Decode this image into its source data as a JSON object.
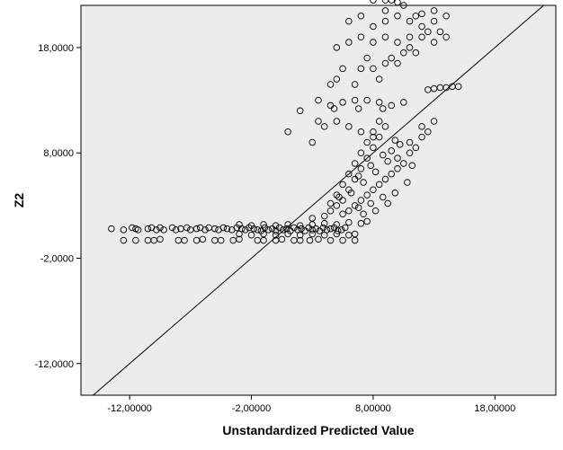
{
  "chart_data": {
    "type": "scatter",
    "title": "",
    "xlabel": "Unstandardized Predicted Value",
    "ylabel": "Z2",
    "xlim": [
      -16,
      23
    ],
    "ylim": [
      -15,
      22
    ],
    "x_ticks": [
      -12,
      -2,
      8,
      18
    ],
    "y_ticks": [
      -12,
      -2,
      8,
      18
    ],
    "x_tick_labels": [
      "-12,00000",
      "-2,00000",
      "8,00000",
      "18,00000"
    ],
    "y_tick_labels": [
      "-12,0000",
      "-2,0000",
      "8,0000",
      "18,0000"
    ],
    "reference_line": "y = x",
    "plot_background": "#ececec",
    "marker": "open-circle",
    "grid": false,
    "points": [
      [
        -13.5,
        0.8
      ],
      [
        -12.5,
        0.7
      ],
      [
        -11.8,
        0.9
      ],
      [
        -11.5,
        0.8
      ],
      [
        -11.3,
        0.7
      ],
      [
        -10.5,
        0.8
      ],
      [
        -10.2,
        0.9
      ],
      [
        -9.8,
        0.7
      ],
      [
        -9.5,
        0.9
      ],
      [
        -9.2,
        0.7
      ],
      [
        -8.5,
        0.9
      ],
      [
        -8.2,
        0.7
      ],
      [
        -7.8,
        0.8
      ],
      [
        -7.3,
        0.9
      ],
      [
        -7,
        0.7
      ],
      [
        -6.5,
        0.8
      ],
      [
        -6.2,
        0.9
      ],
      [
        -5.8,
        0.7
      ],
      [
        -5.5,
        0.9
      ],
      [
        -5,
        0.8
      ],
      [
        -4.7,
        0.7
      ],
      [
        -4.3,
        0.9
      ],
      [
        -4,
        0.8
      ],
      [
        -3.6,
        0.7
      ],
      [
        -3.2,
        0.9
      ],
      [
        -2.8,
        0.8
      ],
      [
        -2.5,
        0.7
      ],
      [
        -2.2,
        0.9
      ],
      [
        -1.8,
        0.8
      ],
      [
        -1.5,
        0.7
      ],
      [
        -1.2,
        0.6
      ],
      [
        -0.9,
        0.9
      ],
      [
        -0.6,
        0.7
      ],
      [
        -0.3,
        0.8
      ],
      [
        0,
        0.6
      ],
      [
        0.3,
        0.9
      ],
      [
        0.6,
        0.7
      ],
      [
        0.9,
        0.8
      ],
      [
        1.2,
        0.6
      ],
      [
        1.5,
        0.9
      ],
      [
        1.8,
        0.7
      ],
      [
        2.1,
        0.8
      ],
      [
        2.4,
        0.6
      ],
      [
        2.7,
        0.9
      ],
      [
        3,
        0.7
      ],
      [
        3.3,
        0.8
      ],
      [
        3.6,
        0.6
      ],
      [
        3.9,
        0.9
      ],
      [
        4.2,
        0.7
      ],
      [
        4.5,
        0.8
      ],
      [
        4.8,
        0.9
      ],
      [
        5.1,
        0.6
      ],
      [
        5.4,
        0.7
      ],
      [
        5.7,
        0.9
      ],
      [
        -12.5,
        -0.3
      ],
      [
        -11.5,
        -0.3
      ],
      [
        -10.5,
        -0.3
      ],
      [
        -10,
        -0.3
      ],
      [
        -9.5,
        -0.2
      ],
      [
        -8,
        -0.3
      ],
      [
        -7.5,
        -0.3
      ],
      [
        -6.5,
        -0.3
      ],
      [
        -6,
        -0.2
      ],
      [
        -5,
        -0.3
      ],
      [
        -4.5,
        -0.3
      ],
      [
        -3.5,
        -0.3
      ],
      [
        -3,
        -0.2
      ],
      [
        -1.5,
        -0.3
      ],
      [
        -1,
        -0.3
      ],
      [
        0,
        -0.3
      ],
      [
        0.5,
        -0.2
      ],
      [
        1.5,
        -0.3
      ],
      [
        2,
        -0.3
      ],
      [
        2.8,
        -0.3
      ],
      [
        3.5,
        -0.2
      ],
      [
        4.5,
        -0.3
      ],
      [
        5.5,
        -0.3
      ],
      [
        6.5,
        -0.3
      ],
      [
        -3,
        1.2
      ],
      [
        -2,
        1.1
      ],
      [
        -1,
        1.2
      ],
      [
        0,
        1.1
      ],
      [
        1,
        1.2
      ],
      [
        2,
        1.1
      ],
      [
        3,
        1.2
      ],
      [
        4,
        1.3
      ],
      [
        5,
        1.2
      ],
      [
        6,
        1.4
      ],
      [
        7,
        1.3
      ],
      [
        7.5,
        1.5
      ],
      [
        -3,
        0.3
      ],
      [
        -2,
        0.2
      ],
      [
        -1,
        0.3
      ],
      [
        0,
        0.2
      ],
      [
        1,
        0.3
      ],
      [
        2,
        0.2
      ],
      [
        3,
        0.3
      ],
      [
        4,
        0.2
      ],
      [
        5,
        0.3
      ],
      [
        6,
        0.2
      ],
      [
        6.5,
        0.3
      ],
      [
        3,
        1.8
      ],
      [
        4,
        2
      ],
      [
        4.5,
        2.5
      ],
      [
        5,
        3
      ],
      [
        5.5,
        3.5
      ],
      [
        5,
        4
      ],
      [
        6,
        4.5
      ],
      [
        5.5,
        5
      ],
      [
        6.5,
        5.5
      ],
      [
        6,
        6
      ],
      [
        7,
        6.5
      ],
      [
        6.5,
        7
      ],
      [
        7.5,
        7.5
      ],
      [
        7,
        8
      ],
      [
        8,
        8.5
      ],
      [
        7.5,
        9
      ],
      [
        8.5,
        9.5
      ],
      [
        8,
        10
      ],
      [
        9,
        10.5
      ],
      [
        8.5,
        11
      ],
      [
        6,
        2.5
      ],
      [
        6.5,
        3
      ],
      [
        7,
        3.5
      ],
      [
        7.5,
        4
      ],
      [
        8,
        4.5
      ],
      [
        8.5,
        5
      ],
      [
        9,
        5.5
      ],
      [
        9.5,
        6
      ],
      [
        10,
        6.5
      ],
      [
        10.5,
        7
      ],
      [
        10,
        7.5
      ],
      [
        11,
        8
      ],
      [
        11.5,
        8.5
      ],
      [
        11,
        9
      ],
      [
        12,
        9.5
      ],
      [
        12.5,
        10
      ],
      [
        12,
        10.5
      ],
      [
        13,
        11
      ],
      [
        4.5,
        3.2
      ],
      [
        5.2,
        3.8
      ],
      [
        6.2,
        4.2
      ],
      [
        7.2,
        5.2
      ],
      [
        6.8,
        5.8
      ],
      [
        8.2,
        6.2
      ],
      [
        7.8,
        6.8
      ],
      [
        9.2,
        7.2
      ],
      [
        8.8,
        7.8
      ],
      [
        9.5,
        8.2
      ],
      [
        10.2,
        8.8
      ],
      [
        9.8,
        9.2
      ],
      [
        5.5,
        2.2
      ],
      [
        6.8,
        2.8
      ],
      [
        7.8,
        3.2
      ],
      [
        8.8,
        3.8
      ],
      [
        9.8,
        4.2
      ],
      [
        10.8,
        5.2
      ],
      [
        11.2,
        6.8
      ],
      [
        7.2,
        2.2
      ],
      [
        8.2,
        2.5
      ],
      [
        9.2,
        3.2
      ],
      [
        3.5,
        13
      ],
      [
        4.5,
        12.5
      ],
      [
        5.5,
        12.8
      ],
      [
        6.5,
        13
      ],
      [
        7.5,
        13
      ],
      [
        8.5,
        12.8
      ],
      [
        9.5,
        12.5
      ],
      [
        10.5,
        12.8
      ],
      [
        5,
        11
      ],
      [
        6,
        10.5
      ],
      [
        7,
        10
      ],
      [
        8,
        9.5
      ],
      [
        4.8,
        12.2
      ],
      [
        6.8,
        12.2
      ],
      [
        8.8,
        12.2
      ],
      [
        12.5,
        14
      ],
      [
        13,
        14.1
      ],
      [
        13.5,
        14.2
      ],
      [
        14,
        14.2
      ],
      [
        14.5,
        14.3
      ],
      [
        15,
        14.3
      ],
      [
        4.5,
        14.5
      ],
      [
        5,
        15
      ],
      [
        5.5,
        16
      ],
      [
        6.5,
        14.5
      ],
      [
        7,
        16
      ],
      [
        7.5,
        17
      ],
      [
        8,
        16
      ],
      [
        8.5,
        15
      ],
      [
        9,
        16.5
      ],
      [
        9.5,
        17
      ],
      [
        10,
        16.5
      ],
      [
        10.5,
        17.5
      ],
      [
        11,
        18
      ],
      [
        11.5,
        17.5
      ],
      [
        6,
        18.5
      ],
      [
        7,
        19
      ],
      [
        8,
        18.5
      ],
      [
        9,
        19
      ],
      [
        10,
        18.5
      ],
      [
        11,
        19
      ],
      [
        12,
        19
      ],
      [
        13,
        18.5
      ],
      [
        12.5,
        19.5
      ],
      [
        13.5,
        19.5
      ],
      [
        14,
        19
      ],
      [
        12,
        20
      ],
      [
        13,
        20.5
      ],
      [
        11.5,
        21
      ],
      [
        5,
        18
      ],
      [
        6,
        20.5
      ],
      [
        7,
        21
      ],
      [
        8,
        20
      ],
      [
        9,
        20.5
      ],
      [
        10,
        21
      ],
      [
        11,
        20.5
      ],
      [
        12,
        21.2
      ],
      [
        13,
        21.5
      ],
      [
        14,
        21
      ],
      [
        8,
        22.5
      ],
      [
        9,
        22.5
      ],
      [
        9.5,
        22.5
      ],
      [
        10,
        22.3
      ],
      [
        9,
        21.5
      ],
      [
        10.5,
        22
      ],
      [
        15,
        23.2
      ],
      [
        15.5,
        23.3
      ],
      [
        16,
        23.3
      ],
      [
        16.5,
        23.3
      ],
      [
        17,
        23.3
      ],
      [
        17.5,
        23.3
      ],
      [
        18,
        23.3
      ],
      [
        1,
        10
      ],
      [
        2,
        12
      ],
      [
        3,
        9
      ],
      [
        3.5,
        11
      ],
      [
        4,
        10.5
      ]
    ]
  }
}
